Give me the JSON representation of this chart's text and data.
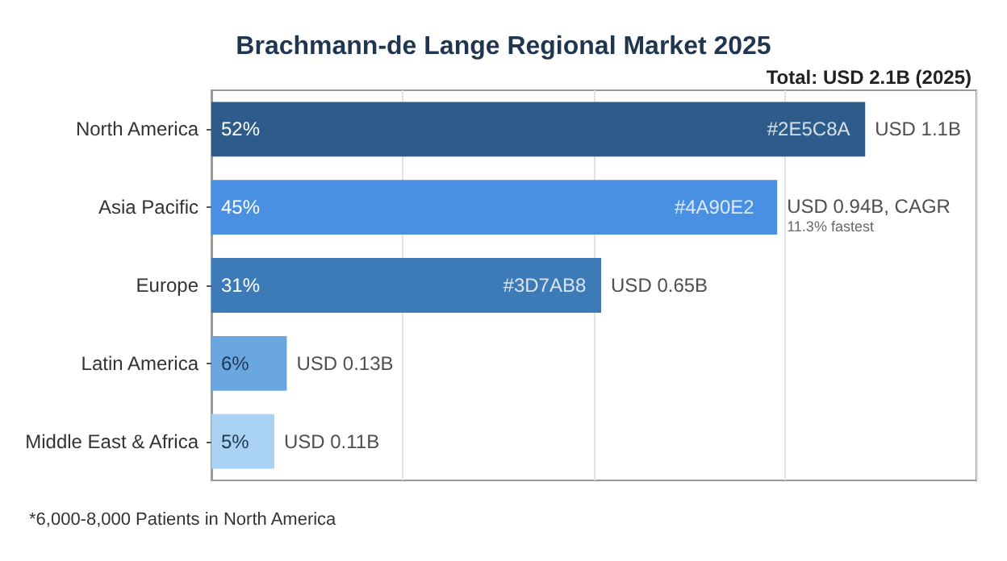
{
  "chart_data": {
    "type": "bar",
    "orientation": "horizontal",
    "title": "Brachmann-de Lange Regional Market 2025",
    "subtitle": "Total: USD 2.1B (2025)",
    "categories": [
      "North America",
      "Asia Pacific",
      "Europe",
      "Latin America",
      "Middle East & Africa"
    ],
    "values": [
      52,
      45,
      31,
      6,
      5
    ],
    "colors": [
      "#2e5c8a",
      "#4a90e2",
      "#3d7ab8",
      "#6aa6e0",
      "#a8d1f2"
    ],
    "value_labels": [
      "52%",
      "45%",
      "31%",
      "6%",
      "5%"
    ],
    "annotations": [
      {
        "text": "USD 1.1B",
        "x": 52,
        "y": "North America"
      },
      {
        "text": "USD 0.94B, CAGR\n11.3% fastest",
        "x": 45,
        "y": "Asia Pacific"
      },
      {
        "text": "USD 0.65B",
        "x": 31,
        "y": "Europe"
      },
      {
        "text": "USD 0.13B",
        "x": 6,
        "y": "Latin America"
      },
      {
        "text": "USD 0.11B",
        "x": 5,
        "y": "Middle East & Africa"
      },
      {
        "text": "#2E5C8A",
        "x": 47.5,
        "y": "North America"
      },
      {
        "text": "#4A90E2",
        "x": 40,
        "y": "Asia Pacific"
      },
      {
        "text": "#3D7AB8",
        "x": 26.5,
        "y": "Europe"
      },
      "*6,000-8,000 Patients in North America"
    ],
    "grid": "x"
  }
}
